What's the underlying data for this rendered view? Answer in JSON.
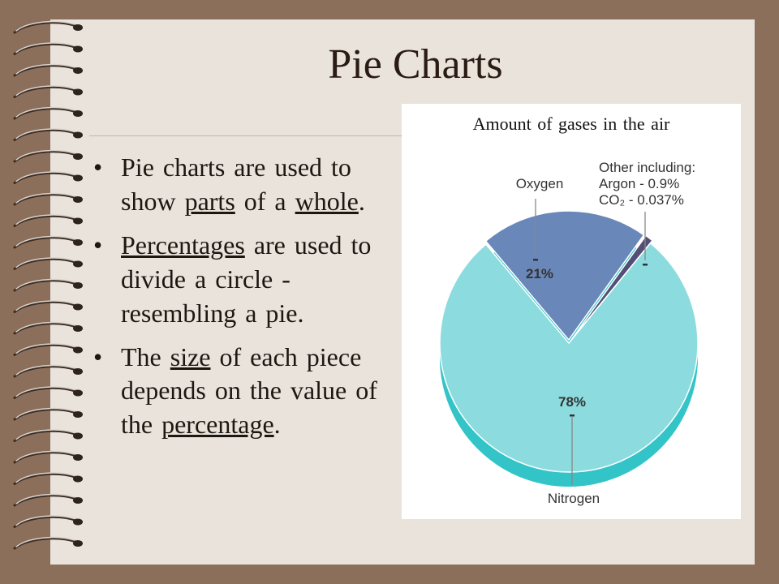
{
  "slide": {
    "title": "Pie Charts",
    "bullets": [
      [
        {
          "t": "Pie charts are used to show "
        },
        {
          "t": "parts",
          "u": true
        },
        {
          "t": " of a "
        },
        {
          "t": "whole",
          "u": true
        },
        {
          "t": "."
        }
      ],
      [
        {
          "t": "Percentages",
          "u": true
        },
        {
          "t": " are used to divide a circle - resembling a pie."
        }
      ],
      [
        {
          "t": "The "
        },
        {
          "t": "size",
          "u": true
        },
        {
          "t": " of each piece depends on the value of the "
        },
        {
          "t": "percentage",
          "u": true
        },
        {
          "t": "."
        }
      ]
    ]
  },
  "chart_data": {
    "type": "pie",
    "title": "Amount of gases in the air",
    "slices": [
      {
        "name": "Nitrogen",
        "value": 78,
        "value_label": "78%",
        "color": "#8cdcdf"
      },
      {
        "name": "Oxygen",
        "value": 21,
        "value_label": "21%",
        "color": "#6a87b9"
      },
      {
        "name": "Other including:",
        "value": 1,
        "value_label": "",
        "color": "#524e75",
        "detail": [
          "Argon - 0.9%",
          "CO₂ - 0.037%"
        ]
      }
    ],
    "side_color": "#33c4c8"
  }
}
